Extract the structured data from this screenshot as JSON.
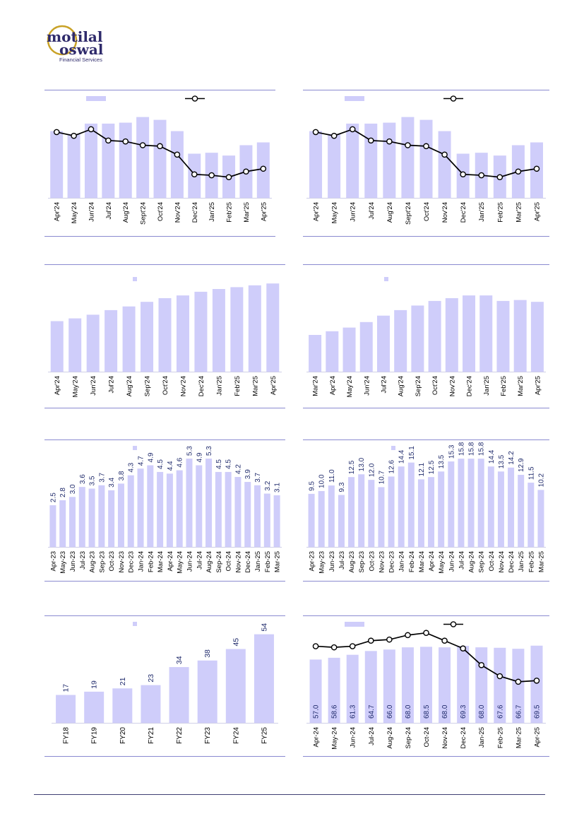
{
  "brand": {
    "name_line1": "motilal",
    "name_line2": "oswal",
    "tagline": "Financial Services",
    "colors": {
      "navy": "#2e2a6b",
      "gold": "#c9a227",
      "bar": "#cfcdfa",
      "rule": "#8a8ad0"
    }
  },
  "chart_data": [
    {
      "id": "c1",
      "type": "bar",
      "title": "",
      "legend": {
        "placement": "top"
      },
      "categories": [
        "Apr'24",
        "May'24",
        "Jun'24",
        "Jul'24",
        "Aug'24",
        "Sept'24",
        "Oct'24",
        "Nov'24",
        "Dec'24",
        "Jan'25",
        "Feb'25",
        "Mar'25",
        "Apr'25"
      ],
      "series": [
        {
          "name": "",
          "kind": "bar",
          "values": [
            71,
            68,
            79,
            79,
            80,
            86,
            83,
            71,
            47,
            48,
            45,
            56,
            59
          ]
        },
        {
          "name": "",
          "kind": "line",
          "values": [
            70,
            66,
            73,
            61,
            60,
            56,
            55,
            46,
            25,
            24,
            22,
            28,
            31
          ]
        }
      ],
      "ylim": [
        0,
        100
      ]
    },
    {
      "id": "c2",
      "type": "bar",
      "title": "",
      "legend": {
        "placement": "top"
      },
      "categories": [
        "Apr'24",
        "May'24",
        "Jun'24",
        "Jul'24",
        "Aug'24",
        "Sept'24",
        "Oct'24",
        "Nov'24",
        "Dec'24",
        "Jan'25",
        "Feb'25",
        "Mar'25",
        "Apr'25"
      ],
      "series": [
        {
          "name": "",
          "kind": "bar",
          "values": [
            71,
            68,
            79,
            79,
            80,
            86,
            83,
            71,
            47,
            48,
            45,
            56,
            59
          ]
        },
        {
          "name": "",
          "kind": "line",
          "values": [
            70,
            66,
            73,
            61,
            60,
            56,
            55,
            46,
            25,
            24,
            22,
            28,
            31
          ]
        }
      ],
      "ylim": [
        0,
        100
      ]
    },
    {
      "id": "c3",
      "type": "bar",
      "title": "",
      "legend": {
        "placement": "top"
      },
      "categories": [
        "Apr'24",
        "May'24",
        "Jun'24",
        "Jul'24",
        "Aug'24",
        "Sep'24",
        "Oct'24",
        "Nov'24",
        "Dec'24",
        "Jan'25",
        "Feb'25",
        "Mar'25",
        "Apr'25"
      ],
      "series": [
        {
          "name": "",
          "kind": "bar",
          "values": [
            55,
            58,
            62,
            67,
            71,
            76,
            80,
            83,
            87,
            90,
            92,
            94,
            96
          ]
        }
      ],
      "ylim": [
        0,
        100
      ]
    },
    {
      "id": "c4",
      "type": "bar",
      "title": "",
      "legend": {
        "placement": "top"
      },
      "categories": [
        "Mar'24",
        "Apr'24",
        "May'24",
        "Jun'24",
        "Jul'24",
        "Aug'24",
        "Sep'24",
        "Oct'24",
        "Nov'24",
        "Dec'24",
        "Jan'25",
        "Feb'25",
        "Mar'25",
        "Apr'25"
      ],
      "series": [
        {
          "name": "",
          "kind": "bar",
          "values": [
            40,
            44,
            48,
            54,
            61,
            67,
            72,
            77,
            80,
            83,
            83,
            77,
            78,
            76
          ]
        }
      ],
      "ylim": [
        0,
        100
      ]
    },
    {
      "id": "c5",
      "type": "bar",
      "title": "",
      "legend": {
        "placement": "top"
      },
      "categories": [
        "Apr-23",
        "May-23",
        "Jun-23",
        "Jul-23",
        "Aug-23",
        "Sep-23",
        "Oct-23",
        "Nov-23",
        "Dec-23",
        "Jan-24",
        "Feb-24",
        "Mar-24",
        "Apr-24",
        "May-24",
        "Jun-24",
        "Jul-24",
        "Aug-24",
        "Sep-24",
        "Oct-24",
        "Nov-24",
        "Dec-24",
        "Jan-25",
        "Feb-25",
        "Mar-25"
      ],
      "series": [
        {
          "name": "",
          "kind": "bar",
          "values": [
            2.5,
            2.8,
            3.0,
            3.6,
            3.5,
            3.7,
            3.4,
            3.8,
            4.3,
            4.7,
            4.9,
            4.5,
            4.4,
            4.6,
            5.3,
            4.9,
            5.3,
            4.5,
            4.5,
            4.2,
            3.9,
            3.7,
            3.2,
            3.1
          ]
        }
      ],
      "labels": [
        "2.5",
        "2.8",
        "3.0",
        "3.6",
        "3.5",
        "3.7",
        "3.4",
        "3.8",
        "4.3",
        "4.7",
        "4.9",
        "4.5",
        "4.4",
        "4.6",
        "5.3",
        "4.9",
        "5.3",
        "4.5",
        "4.5",
        "4.2",
        "3.9",
        "3.7",
        "3.2",
        "3.1"
      ],
      "ylim": [
        0,
        5.6
      ]
    },
    {
      "id": "c6",
      "type": "bar",
      "title": "",
      "legend": {
        "placement": "top"
      },
      "categories": [
        "Apr-23",
        "May-23",
        "Jun-23",
        "Jul-23",
        "Aug-23",
        "Sep-23",
        "Oct-23",
        "Nov-23",
        "Dec-23",
        "Jan-24",
        "Feb-24",
        "Mar-24",
        "Apr-24",
        "May-24",
        "Jun-24",
        "Jul-24",
        "Aug-24",
        "Sep-24",
        "Oct-24",
        "Nov-24",
        "Dec-24",
        "Jan-25",
        "Feb-25",
        "Mar-25"
      ],
      "series": [
        {
          "name": "",
          "kind": "bar",
          "values": [
            9.5,
            10.0,
            11.0,
            9.3,
            12.5,
            13.0,
            12.0,
            10.7,
            12.6,
            14.4,
            15.1,
            12.1,
            12.5,
            13.5,
            15.3,
            15.8,
            15.8,
            15.8,
            14.4,
            13.5,
            14.2,
            12.9,
            11.5,
            10.2
          ]
        }
      ],
      "labels": [
        "9.5",
        "10.0",
        "11.0",
        "9.3",
        "12.5",
        "13.0",
        "12.0",
        "10.7",
        "12.6",
        "14.4",
        "15.1",
        "12.1",
        "12.5",
        "13.5",
        "15.3",
        "15.8",
        "15.8",
        "15.8",
        "14.4",
        "13.5",
        "14.2",
        "12.9",
        "11.5",
        "10.2"
      ],
      "ylim": [
        0,
        16.7
      ]
    },
    {
      "id": "c7",
      "type": "bar",
      "title": "",
      "legend": {
        "placement": "top"
      },
      "categories": [
        "FY18",
        "FY19",
        "FY20",
        "FY21",
        "FY22",
        "FY23",
        "FY24",
        "FY25"
      ],
      "series": [
        {
          "name": "",
          "kind": "bar",
          "values": [
            17,
            19,
            21,
            23,
            34,
            38,
            45,
            54
          ]
        }
      ],
      "labels": [
        "17",
        "19",
        "21",
        "23",
        "34",
        "38",
        "45",
        "54"
      ],
      "ylim": [
        0,
        56
      ]
    },
    {
      "id": "c8",
      "type": "bar",
      "title": "",
      "legend": {
        "placement": "top"
      },
      "categories": [
        "Apr-24",
        "May-24",
        "Jun-24",
        "Jul-24",
        "Aug-24",
        "Sep-24",
        "Oct-24",
        "Nov-24",
        "Dec-24",
        "Jan-25",
        "Feb-25",
        "Mar-25",
        "Apr-25"
      ],
      "series": [
        {
          "name": "",
          "kind": "bar",
          "values": [
            57.0,
            58.6,
            61.3,
            64.7,
            66.0,
            68.0,
            68.5,
            68.0,
            69.3,
            68.0,
            67.6,
            66.7,
            69.5
          ]
        },
        {
          "name": "",
          "kind": "line",
          "values": [
            69,
            68,
            69,
            74,
            75,
            79,
            81,
            74,
            67,
            52,
            42,
            37,
            38
          ]
        }
      ],
      "labels": [
        "57.0",
        "58.6",
        "61.3",
        "64.7",
        "66.0",
        "68.0",
        "68.5",
        "68.0",
        "69.3",
        "68.0",
        "67.6",
        "66.7",
        "69.5"
      ],
      "ylim": [
        0,
        84
      ]
    }
  ]
}
